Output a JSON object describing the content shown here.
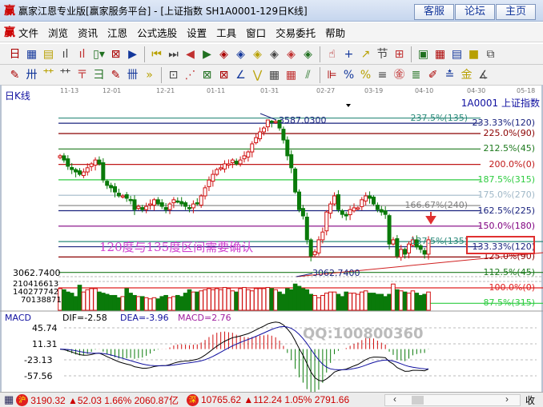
{
  "window": {
    "logo": "赢",
    "title": "赢家江恩专业版[赢家服务平台] - [上证指数  SH1A0001-129日K线]",
    "buttons": [
      "客服",
      "论坛",
      "主页"
    ]
  },
  "menu": {
    "logo": "赢",
    "items": [
      "文件",
      "浏览",
      "资讯",
      "江恩",
      "公式选股",
      "设置",
      "工具",
      "窗口",
      "交易委托",
      "帮助"
    ]
  },
  "toolbar1": [
    {
      "icon": "day-period-icon",
      "g": "日▾"
    },
    {
      "icon": "window-icon",
      "g": "▦"
    },
    {
      "icon": "doc-icon",
      "g": "▤"
    },
    {
      "icon": "kline-icon",
      "g": "ıl"
    },
    {
      "icon": "kline2-icon",
      "g": "ıl"
    },
    {
      "icon": "candle-icon",
      "g": "▯▾"
    },
    {
      "icon": "mark-icon",
      "g": "⊠"
    },
    {
      "icon": "flag-icon",
      "g": "▶"
    },
    {
      "icon": "first-icon",
      "g": "⏮"
    },
    {
      "icon": "last-icon",
      "g": "⏭"
    },
    {
      "icon": "prev-icon",
      "g": "◀"
    },
    {
      "icon": "next-icon",
      "g": "▶"
    },
    {
      "icon": "left-diamond-icon",
      "g": "◈"
    },
    {
      "icon": "right-diamond-icon",
      "g": "◈"
    },
    {
      "icon": "expand-h-icon",
      "g": "◈"
    },
    {
      "icon": "shrink-icon",
      "g": "◈"
    },
    {
      "icon": "expand-icon",
      "g": "◈"
    },
    {
      "icon": "expand-v-icon",
      "g": "◈"
    },
    {
      "icon": "hand-icon",
      "g": "☝"
    },
    {
      "icon": "crosshair-icon",
      "g": "+"
    },
    {
      "icon": "line-icon",
      "g": "↗"
    },
    {
      "icon": "tree-icon",
      "g": "节"
    },
    {
      "icon": "chart-icon",
      "g": "⊞"
    },
    {
      "icon": "calendar-icon",
      "g": "▣"
    },
    {
      "icon": "calculator-icon",
      "g": "▦"
    },
    {
      "icon": "notes-icon",
      "g": "▤"
    },
    {
      "icon": "save-icon",
      "g": "■"
    },
    {
      "icon": "network-icon",
      "g": "⧉"
    }
  ],
  "toolbar2": [
    {
      "icon": "pen-icon",
      "g": "✎"
    },
    {
      "icon": "grid-icon",
      "g": "卅"
    },
    {
      "icon": "gann-icon",
      "g": "⺿"
    },
    {
      "icon": "gann2-icon",
      "g": "⺿"
    },
    {
      "icon": "fib-icon",
      "g": "〒"
    },
    {
      "icon": "spiral-icon",
      "g": "彐"
    },
    {
      "icon": "pen2-icon",
      "g": "✎"
    },
    {
      "icon": "grid2-icon",
      "g": "卌"
    },
    {
      "icon": "more-icon",
      "g": "»"
    },
    {
      "icon": "box-icon",
      "g": "⊡"
    },
    {
      "icon": "fan-icon",
      "g": "⋰"
    },
    {
      "icon": "square-icon",
      "g": "⊠"
    },
    {
      "icon": "square2-icon",
      "g": "⊠"
    },
    {
      "icon": "angle-icon",
      "g": "∠"
    },
    {
      "icon": "wave-icon",
      "g": "⋁"
    },
    {
      "icon": "mesh-icon",
      "g": "▦"
    },
    {
      "icon": "mesh2-icon",
      "g": "▦"
    },
    {
      "icon": "parallel-icon",
      "g": "⫽"
    },
    {
      "icon": "ruler-icon",
      "g": "⊫"
    },
    {
      "icon": "pct-icon",
      "g": "%"
    },
    {
      "icon": "pct2-icon",
      "g": "%"
    },
    {
      "icon": "pct3-icon",
      "g": "≡"
    },
    {
      "icon": "gold-icon",
      "g": "㊎"
    },
    {
      "icon": "gold2-icon",
      "g": "≣"
    },
    {
      "icon": "pen3-icon",
      "g": "✐"
    },
    {
      "icon": "gold3-icon",
      "g": "≛"
    },
    {
      "icon": "gold4-icon",
      "g": "金"
    },
    {
      "icon": "angle2-icon",
      "g": "∡"
    }
  ],
  "date_axis": [
    "11-13",
    "12-01",
    "12-21",
    "01-11",
    "01-31",
    "02-27",
    "03-19",
    "04-10",
    "04-30",
    "05-18"
  ],
  "chart": {
    "period_label": "日K线",
    "code_label": "1A0001  上证指数",
    "high_label": "3587.0300",
    "low_label": "3062.7400",
    "low_axis_label": "3062.7400",
    "annotation": "120度与135度区间需要确认",
    "watermark": "QQ:100800360",
    "volume_axis": [
      "210416613",
      "140277742",
      "70138871"
    ],
    "levels": [
      {
        "pct": 237.5,
        "label": "237.5%(135)",
        "color": "#2a8a7a"
      },
      {
        "pct": 233.33,
        "label": "233.33%(120)",
        "color": "#1a237e"
      },
      {
        "pct": 225.0,
        "label": "225.0%(90)",
        "color": "#8b0000"
      },
      {
        "pct": 212.5,
        "label": "212.5%(45)",
        "color": "#1e7a1e"
      },
      {
        "pct": 200.0,
        "label": "200.0%(0)",
        "color": "#c01818"
      },
      {
        "pct": 187.5,
        "label": "187.5%(315)",
        "color": "#2ecc40"
      },
      {
        "pct": 175.0,
        "label": "175.0%(270)",
        "color": "#a0b8c8"
      },
      {
        "pct": 166.67,
        "label": "166.67%(240)",
        "color": "#808080"
      },
      {
        "pct": 162.5,
        "label": "162.5%(225)",
        "color": "#1a237e"
      },
      {
        "pct": 150.0,
        "label": "150.0%(180)",
        "color": "#800080"
      },
      {
        "pct": 137.5,
        "label": "137.5%(135)",
        "color": "#2a8a7a"
      },
      {
        "pct": 133.33,
        "label": "133.33%(120)",
        "color": "#1a237e"
      },
      {
        "pct": 125.0,
        "label": "125.0%(90)",
        "color": "#8b0000"
      },
      {
        "pct": 112.5,
        "label": "112.5%(45)",
        "color": "#1e7a1e"
      },
      {
        "pct": 100.0,
        "label": "100.0%(0)",
        "color": "#e02020"
      },
      {
        "pct": 87.5,
        "label": "87.5%(315)",
        "color": "#2ecc40"
      }
    ],
    "highlight_level": "133.33%(120)",
    "colors": {
      "up": "#d01010",
      "down": "#0a7a0a",
      "bg": "#ffffff"
    },
    "closes": [
      3467,
      3453,
      3432,
      3421,
      3413,
      3405,
      3413,
      3427,
      3440,
      3453,
      3440,
      3386,
      3368,
      3360,
      3346,
      3333,
      3333,
      3325,
      3320,
      3287,
      3298,
      3287,
      3298,
      3306,
      3320,
      3306,
      3298,
      3287,
      3306,
      3320,
      3314,
      3306,
      3298,
      3293,
      3306,
      3306,
      3333,
      3360,
      3386,
      3405,
      3421,
      3427,
      3440,
      3440,
      3453,
      3440,
      3453,
      3467,
      3480,
      3507,
      3528,
      3547,
      3560,
      3587,
      3580,
      3582,
      3560,
      3520,
      3467,
      3427,
      3346,
      3287,
      3266,
      3186,
      3132,
      3146,
      3186,
      3212,
      3279,
      3306,
      3333,
      3287,
      3271,
      3266,
      3287,
      3293,
      3293,
      3320,
      3333,
      3325,
      3306,
      3287,
      3279,
      3271,
      3172,
      3186,
      3132,
      3154,
      3138,
      3172,
      3186,
      3162,
      3154,
      3138,
      3186
    ],
    "volumes": [
      190000000.0,
      180000000.0,
      160000000.0,
      150000000.0,
      120000000.0,
      220000000.0,
      160000000.0,
      180000000.0,
      190000000.0,
      190000000.0,
      160000000.0,
      150000000.0,
      140000000.0,
      130000000.0,
      130000000.0,
      110000000.0,
      120000000.0,
      190000000.0,
      150000000.0,
      130000000.0,
      120000000.0,
      120000000.0,
      110000000.0,
      100000000.0,
      110000000.0,
      100000000.0,
      120000000.0,
      130000000.0,
      110000000.0,
      120000000.0,
      130000000.0,
      120000000.0,
      150000000.0,
      180000000.0,
      160000000.0,
      160000000.0,
      170000000.0,
      180000000.0,
      190000000.0,
      180000000.0,
      190000000.0,
      180000000.0,
      200000000.0,
      190000000.0,
      170000000.0,
      160000000.0,
      190000000.0,
      200000000.0,
      180000000.0,
      170000000.0,
      190000000.0,
      190000000.0,
      190000000.0,
      200000000.0,
      190000000.0,
      180000000.0,
      160000000.0,
      140000000.0,
      190000000.0,
      180000000.0,
      230000000.0,
      210000000.0,
      190000000.0,
      180000000.0,
      140000000.0,
      130000000.0,
      110000000.0,
      130000000.0,
      150000000.0,
      160000000.0,
      160000000.0,
      140000000.0,
      120000000.0,
      160000000.0,
      150000000.0,
      150000000.0,
      140000000.0,
      160000000.0,
      170000000.0,
      150000000.0,
      150000000.0,
      140000000.0,
      140000000.0,
      120000000.0,
      140000000.0,
      230000000.0,
      180000000.0,
      170000000.0,
      160000000.0,
      150000000.0,
      170000000.0,
      150000000.0,
      130000000.0,
      140000000.0,
      160000000.0
    ]
  },
  "macd": {
    "title": "MACD",
    "dif": "DIF=-2.58",
    "dea": "DEA=-3.96",
    "macd": "MACD=2.76",
    "axis": [
      "45.74",
      "11.31",
      "-23.13",
      "-57.56"
    ]
  },
  "status": {
    "sh_badge": "沪",
    "sh_text": "3190.32 ▲52.03 1.66% 2060.87亿",
    "sz_badge": "深",
    "sz_text": "10765.62 ▲112.24 1.05% 2791.66",
    "scroll_left": "‹",
    "scroll_right": "›",
    "collapse": "收"
  }
}
